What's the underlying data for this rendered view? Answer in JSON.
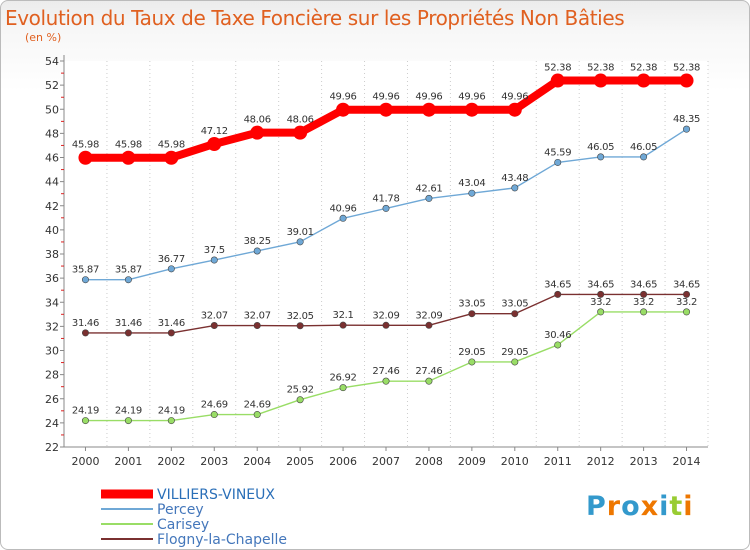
{
  "chart_data": {
    "type": "line",
    "title": "Evolution du Taux de Taxe Foncière sur les Propriétés Non Bâties",
    "unit_label": "(en %)",
    "x": [
      "2000",
      "2001",
      "2002",
      "2003",
      "2004",
      "2005",
      "2006",
      "2007",
      "2008",
      "2009",
      "2010",
      "2011",
      "2012",
      "2013",
      "2014"
    ],
    "ylim": [
      22,
      54
    ],
    "y_ticks": [
      22,
      24,
      26,
      28,
      30,
      32,
      34,
      36,
      38,
      40,
      42,
      44,
      46,
      48,
      50,
      52,
      54
    ],
    "grid": "vertical dotted",
    "legend_position": "bottom-left",
    "series": [
      {
        "name": "VILLIERS-VINEUX",
        "color": "#ff0000",
        "values": [
          45.98,
          45.98,
          45.98,
          47.12,
          48.06,
          48.06,
          49.96,
          49.96,
          49.96,
          49.96,
          49.96,
          52.38,
          52.38,
          52.38,
          52.38
        ],
        "labels": [
          "45.98",
          "45.98",
          "45.98",
          "47.12",
          "48.06",
          "48.06",
          "49.96",
          "49.96",
          "49.96",
          "49.96",
          "49.96",
          "52.38",
          "52.38",
          "52.38",
          "52.38"
        ]
      },
      {
        "name": "Percey",
        "color": "#6fa8d6",
        "values": [
          35.87,
          35.87,
          36.77,
          37.5,
          38.25,
          39.01,
          40.96,
          41.78,
          42.61,
          43.04,
          43.48,
          45.59,
          46.05,
          46.05,
          48.35
        ],
        "labels": [
          "35.87",
          "35.87",
          "36.77",
          "37.5",
          "38.25",
          "39.01",
          "40.96",
          "41.78",
          "42.61",
          "43.04",
          "43.48",
          "45.59",
          "46.05",
          "46.05",
          "48.35"
        ]
      },
      {
        "name": "Carisey",
        "color": "#99dd66",
        "values": [
          24.19,
          24.19,
          24.19,
          24.69,
          24.69,
          25.92,
          26.92,
          27.46,
          27.46,
          29.05,
          29.05,
          30.46,
          33.2,
          33.2,
          33.2
        ],
        "labels": [
          "24.19",
          "24.19",
          "24.19",
          "24.69",
          "24.69",
          "25.92",
          "26.92",
          "27.46",
          "27.46",
          "29.05",
          "29.05",
          "30.46",
          "33.2",
          "33.2",
          "33.2"
        ]
      },
      {
        "name": "Flogny-la-Chapelle",
        "color": "#7a3030",
        "values": [
          31.46,
          31.46,
          31.46,
          32.07,
          32.07,
          32.05,
          32.1,
          32.09,
          32.09,
          33.05,
          33.05,
          34.65,
          34.65,
          34.65,
          34.65
        ],
        "labels": [
          "31.46",
          "31.46",
          "31.46",
          "32.07",
          "32.07",
          "32.05",
          "32.1",
          "32.09",
          "32.09",
          "33.05",
          "33.05",
          "34.65",
          "34.65",
          "34.65",
          "34.65"
        ]
      }
    ]
  },
  "logo": {
    "text": "Proxiti",
    "letter_colors": [
      "#3399cc",
      "#ee7700",
      "#3399cc",
      "#ee7700",
      "#3399cc",
      "#99cc33",
      "#ee7700"
    ]
  }
}
